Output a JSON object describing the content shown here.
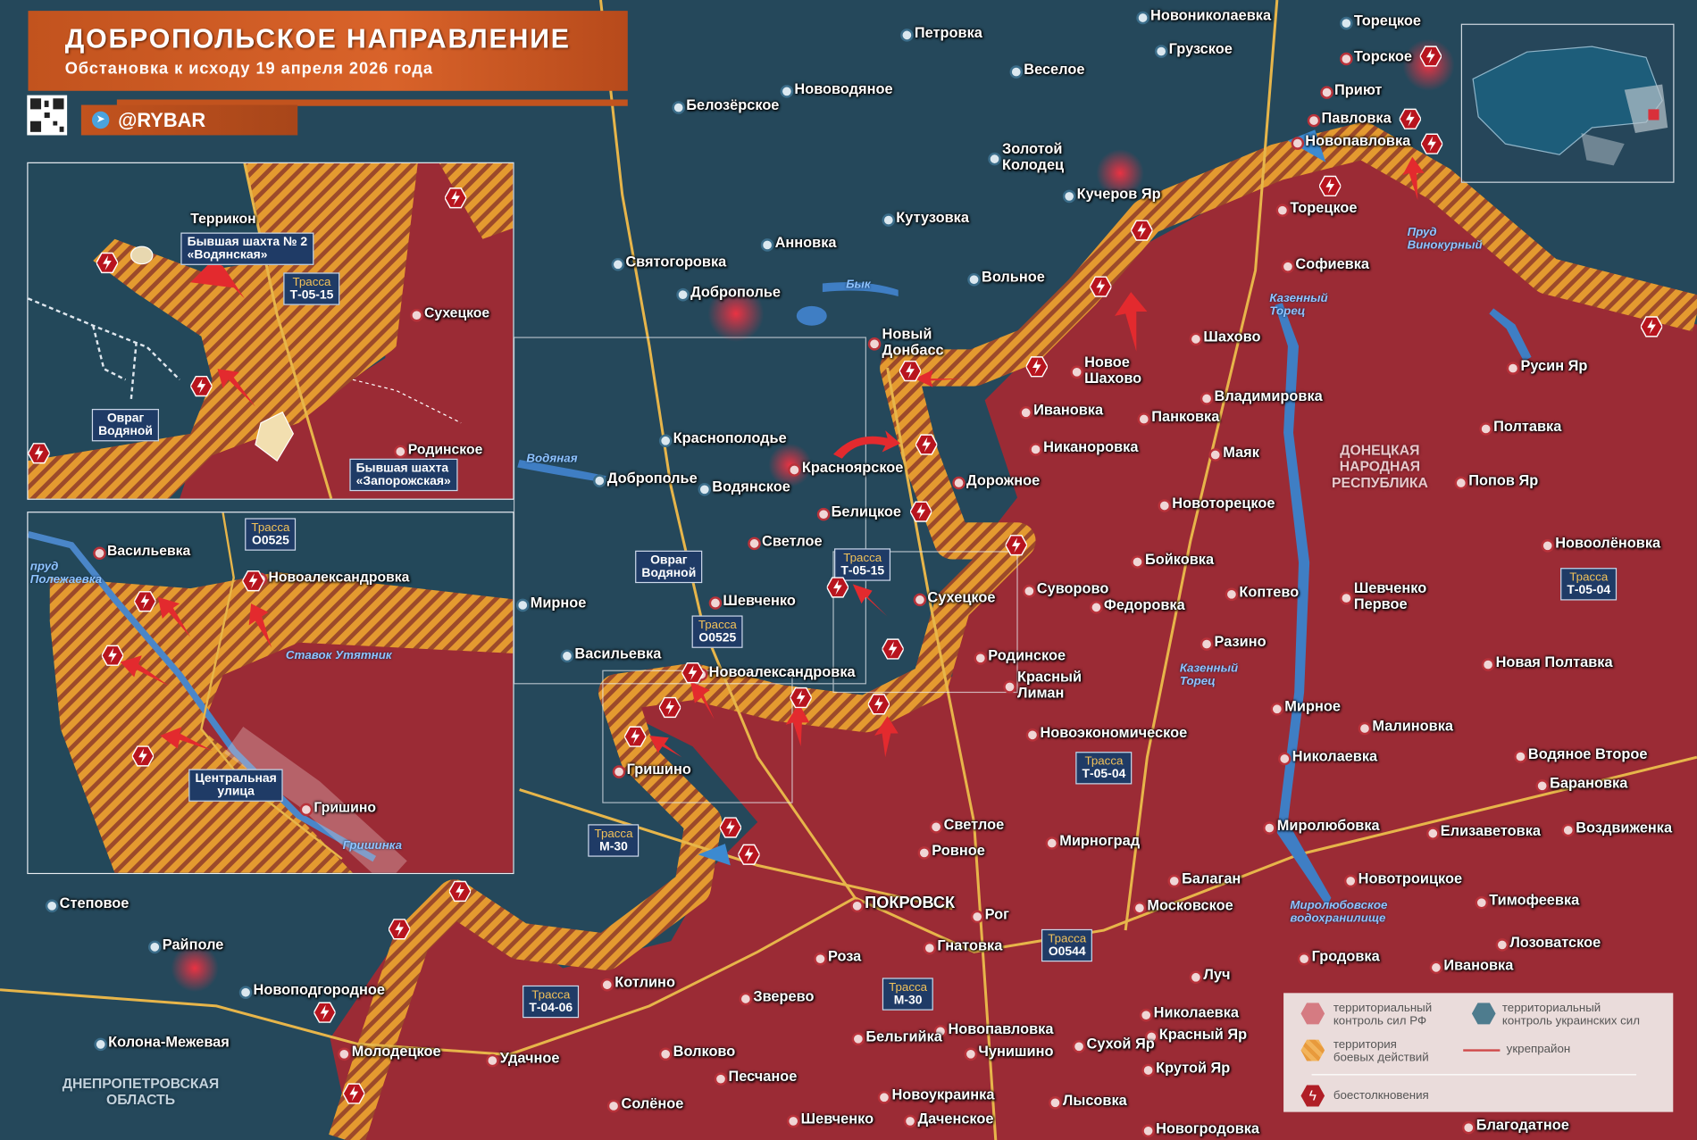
{
  "header": {
    "title": "ДОБРОПОЛЬСКОЕ НАПРАВЛЕНИЕ",
    "subtitle": "Обстановка к исходу 19 апреля 2026 года",
    "channel": "@RYBAR"
  },
  "colors": {
    "russian_control": "#9b2b35",
    "ukrainian_control": "#24475a",
    "combat_zone": "#e59a2f",
    "fortified_line": "#e05a4a",
    "clash": "#c8202a",
    "header": "#c8561f"
  },
  "regions": [
    "ДОНЕЦКАЯ\nНАРОДНАЯ\nРЕСПУБЛИКА",
    "ДНЕПРОПЕТРОВСКАЯ\nОБЛАСТЬ"
  ],
  "towns": [
    "Петровка",
    "Новониколаевка",
    "Торецкое",
    "Грузское",
    "Торское",
    "Веселое",
    "Нововодяное",
    "Приют",
    "Белозёрское",
    "Павловка",
    "Новопавловка",
    "Золотой\nКолодец",
    "Кучеров Яр",
    "Торецкое",
    "Кутузовка",
    "Анновка",
    "Софиевка",
    "Святогоровка",
    "Доброполье",
    "Вольное",
    "Новый\nДонбасс",
    "Новое\nШахово",
    "Шахово",
    "Русин Яр",
    "Владимировка",
    "Ивановка",
    "Панковка",
    "Полтавка",
    "Краснополодье",
    "Никаноровка",
    "Маяк",
    "Красноярское",
    "Попов Яр",
    "Доброполье",
    "Водянское",
    "Дорожное",
    "Новоторецкое",
    "Белицкое",
    "Светлое",
    "Бойковка",
    "Новоолёновка",
    "Суворово",
    "Коптево",
    "Шевченко\nПервое",
    "Мирное",
    "Шевченко",
    "Сухецкое",
    "Федоровка",
    "Разино",
    "Васильевка",
    "Родинское",
    "Новая Полтавка",
    "Новоалександровка",
    "Красный\nЛиман",
    "Мирное",
    "Малиновка",
    "Новоэкономическое",
    "Водяное Второе",
    "Николаевка",
    "Гришино",
    "Барановка",
    "Миролюбовка",
    "Светлое",
    "Елизаветовка",
    "Воздвиженка",
    "Мирноград",
    "Ровное",
    "Балаган",
    "Новотроицкое",
    "Тимофеевка",
    "ПОКРОВСК",
    "Московское",
    "Степовое",
    "Рог",
    "Гнатовка",
    "Райполе",
    "Лозоватское",
    "Роза",
    "Гродовка",
    "Ивановка",
    "Луч",
    "Котлино",
    "Новоподгородное",
    "Зверево",
    "Николаевка",
    "Новопавловка",
    "Бельгийка",
    "Красный Яр",
    "Колона-Межевая",
    "Сухой Яр",
    "Чунишино",
    "Молодецкое",
    "Волково",
    "Удачное",
    "Крутой Яр",
    "Песчаное",
    "Новоукраинка",
    "Лысовка",
    "Солёное",
    "Шевченко",
    "Даченское",
    "Новогродовка",
    "Благодатное"
  ],
  "roads": [
    {
      "l1": "Трасса",
      "l2": "Т-05-15"
    },
    {
      "l1": "Трасса",
      "l2": "О0525"
    },
    {
      "l1": "Трасса",
      "l2": "М-30"
    },
    {
      "l1": "Трасса",
      "l2": "Т-05-04"
    },
    {
      "l1": "Трасса",
      "l2": "О0544"
    },
    {
      "l1": "Трасса",
      "l2": "М-30"
    },
    {
      "l1": "Трасса",
      "l2": "Т-04-06"
    },
    {
      "l1": "Трасса",
      "l2": "Т-05-04"
    }
  ],
  "ravine": "Овраг\nВодяной",
  "water": [
    "Бык",
    "Водяная",
    "Пруд\nВинокурный",
    "Казенный\nТорец",
    "Казенный\nТорец",
    "Миролюбовское\nводохранилище"
  ],
  "inset1": {
    "labels": [
      "Террикон",
      "Бывшая шахта № 2\n«Водянская»",
      "Сухецкое",
      "Овраг\nВодяной",
      "Родинское",
      "Бывшая шахта\n«Запорожская»"
    ],
    "road": {
      "l1": "Трасса",
      "l2": "Т-05-15"
    }
  },
  "inset2": {
    "labels": [
      "Васильевка",
      "Новоалександровка",
      "Центральная\nулица",
      "Гришино"
    ],
    "road": {
      "l1": "Трасса",
      "l2": "О0525"
    },
    "water": [
      "пруд\nПолежаевка",
      "Ставок Утятник",
      "Гришинка"
    ]
  },
  "legend": {
    "ru_control": "территориальный\nконтроль сил РФ",
    "ua_control": "территориальный\nконтроль украинских сил",
    "combat": "территория\nбоевых действий",
    "fortified": "укрепрайон",
    "clashes": "боестолкновения"
  },
  "icons": {
    "clash": "lightning-hexagon-icon",
    "telegram": "telegram-icon",
    "qr": "qr-code-icon",
    "attack": "red-arrow-icon"
  }
}
